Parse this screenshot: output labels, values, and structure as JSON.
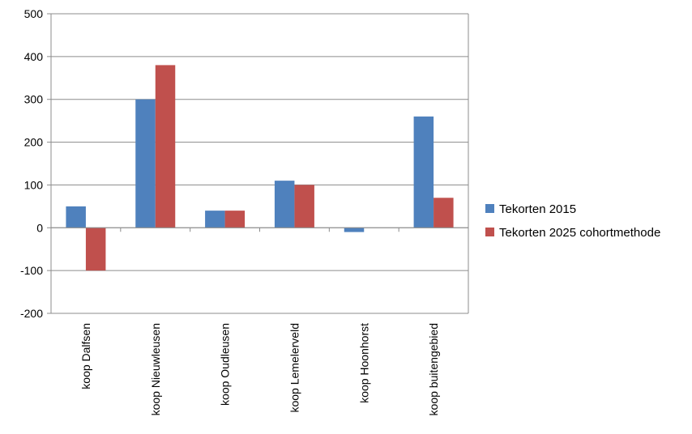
{
  "chart_data": {
    "type": "bar",
    "categories": [
      "koop Dalfsen",
      "koop Nieuwleusen",
      "koop Oudleusen",
      "koop Lemelerveld",
      "koop Hoonhorst",
      "koop buitengebied"
    ],
    "series": [
      {
        "name": "Tekorten 2015",
        "color": "#4F81BD",
        "values": [
          50,
          300,
          40,
          110,
          -10,
          260
        ]
      },
      {
        "name": "Tekorten 2025 cohortmethode",
        "color": "#C0504D",
        "values": [
          -100,
          380,
          40,
          100,
          0,
          70
        ]
      }
    ],
    "y_ticks": [
      "500",
      "400",
      "300",
      "200",
      "100",
      "0",
      "-100",
      "-200"
    ],
    "ylim": [
      -200,
      500
    ],
    "grid": true,
    "legend_position": "right"
  }
}
